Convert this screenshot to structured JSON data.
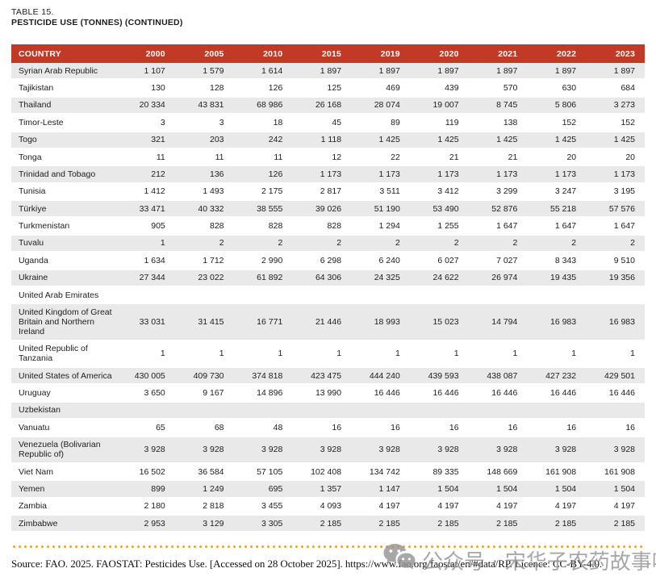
{
  "page": {
    "table_label": "TABLE 15.",
    "table_title": "PESTICIDE USE (TONNES) (CONTINUED)",
    "source_line": "Source: FAO. 2025. FAOSTAT: Pesticides Use. [Accessed on 28 October 2025]. https://www.fao.org/faostat/en/#data/RP. Licence: CC-BY-4.0."
  },
  "watermark": {
    "icon": "wechat-icon",
    "text": "公众号 · 宋华子农药故事吧"
  },
  "colors": {
    "header_bg": "#c23a26",
    "header_text": "#ffffff",
    "row_alt_bg": "#e9e9e9",
    "dotted_line": "#f7a11a",
    "body_text": "#1d1d1f"
  },
  "table": {
    "columns": [
      "COUNTRY",
      "2000",
      "2005",
      "2010",
      "2015",
      "2019",
      "2020",
      "2021",
      "2022",
      "2023"
    ],
    "rows": [
      {
        "country": "Syrian Arab Republic",
        "values": [
          "1 107",
          "1 579",
          "1 614",
          "1 897",
          "1 897",
          "1 897",
          "1 897",
          "1 897",
          "1 897"
        ]
      },
      {
        "country": "Tajikistan",
        "values": [
          "130",
          "128",
          "126",
          "125",
          "469",
          "439",
          "570",
          "630",
          "684"
        ]
      },
      {
        "country": "Thailand",
        "values": [
          "20 334",
          "43 831",
          "68 986",
          "26 168",
          "28 074",
          "19 007",
          "8 745",
          "5 806",
          "3 273"
        ]
      },
      {
        "country": "Timor-Leste",
        "values": [
          "3",
          "3",
          "18",
          "45",
          "89",
          "119",
          "138",
          "152",
          "152"
        ]
      },
      {
        "country": "Togo",
        "values": [
          "321",
          "203",
          "242",
          "1 118",
          "1 425",
          "1 425",
          "1 425",
          "1 425",
          "1 425"
        ]
      },
      {
        "country": "Tonga",
        "values": [
          "11",
          "11",
          "11",
          "12",
          "22",
          "21",
          "21",
          "20",
          "20"
        ]
      },
      {
        "country": "Trinidad and Tobago",
        "values": [
          "212",
          "136",
          "126",
          "1 173",
          "1 173",
          "1 173",
          "1 173",
          "1 173",
          "1 173"
        ]
      },
      {
        "country": "Tunisia",
        "values": [
          "1 412",
          "1 493",
          "2 175",
          "2 817",
          "3 511",
          "3 412",
          "3 299",
          "3 247",
          "3 195"
        ]
      },
      {
        "country": "Türkiye",
        "values": [
          "33 471",
          "40 332",
          "38 555",
          "39 026",
          "51 190",
          "53 490",
          "52 876",
          "55 218",
          "57 576"
        ]
      },
      {
        "country": "Turkmenistan",
        "values": [
          "905",
          "828",
          "828",
          "828",
          "1 294",
          "1 255",
          "1 647",
          "1 647",
          "1 647"
        ]
      },
      {
        "country": "Tuvalu",
        "values": [
          "1",
          "2",
          "2",
          "2",
          "2",
          "2",
          "2",
          "2",
          "2"
        ]
      },
      {
        "country": "Uganda",
        "values": [
          "1 634",
          "1 712",
          "2 990",
          "6 298",
          "6 240",
          "6 027",
          "7 027",
          "8 343",
          "9 510"
        ]
      },
      {
        "country": "Ukraine",
        "values": [
          "27 344",
          "23 022",
          "61 892",
          "64 306",
          "24 325",
          "24 622",
          "26 974",
          "19 435",
          "19 356"
        ]
      },
      {
        "country": "United Arab Emirates",
        "values": [
          "",
          "",
          "",
          "",
          "",
          "",
          "",
          "",
          ""
        ]
      },
      {
        "country": "United Kingdom of Great Britain and Northern Ireland",
        "values": [
          "33 031",
          "31 415",
          "16 771",
          "21 446",
          "18 993",
          "15 023",
          "14 794",
          "16 983",
          "16 983"
        ]
      },
      {
        "country": "United Republic of Tanzania",
        "values": [
          "1",
          "1",
          "1",
          "1",
          "1",
          "1",
          "1",
          "1",
          "1"
        ]
      },
      {
        "country": "United States of America",
        "values": [
          "430 005",
          "409 730",
          "374 818",
          "423 475",
          "444 240",
          "439 593",
          "438 087",
          "427 232",
          "429 501"
        ]
      },
      {
        "country": "Uruguay",
        "values": [
          "3 650",
          "9 167",
          "14 896",
          "13 990",
          "16 446",
          "16 446",
          "16 446",
          "16 446",
          "16 446"
        ]
      },
      {
        "country": "Uzbekistan",
        "values": [
          "",
          "",
          "",
          "",
          "",
          "",
          "",
          "",
          ""
        ]
      },
      {
        "country": "Vanuatu",
        "values": [
          "65",
          "68",
          "48",
          "16",
          "16",
          "16",
          "16",
          "16",
          "16"
        ]
      },
      {
        "country": "Venezuela (Bolivarian Republic of)",
        "values": [
          "3 928",
          "3 928",
          "3 928",
          "3 928",
          "3 928",
          "3 928",
          "3 928",
          "3 928",
          "3 928"
        ]
      },
      {
        "country": "Viet Nam",
        "values": [
          "16 502",
          "36 584",
          "57 105",
          "102 408",
          "134 742",
          "89 335",
          "148 669",
          "161 908",
          "161 908"
        ]
      },
      {
        "country": "Yemen",
        "values": [
          "899",
          "1 249",
          "695",
          "1 357",
          "1 147",
          "1 504",
          "1 504",
          "1 504",
          "1 504"
        ]
      },
      {
        "country": "Zambia",
        "values": [
          "2 180",
          "2 818",
          "3 455",
          "4 093",
          "4 197",
          "4 197",
          "4 197",
          "4 197",
          "4 197"
        ]
      },
      {
        "country": "Zimbabwe",
        "values": [
          "2 953",
          "3 129",
          "3 305",
          "2 185",
          "2 185",
          "2 185",
          "2 185",
          "2 185",
          "2 185"
        ]
      }
    ]
  }
}
